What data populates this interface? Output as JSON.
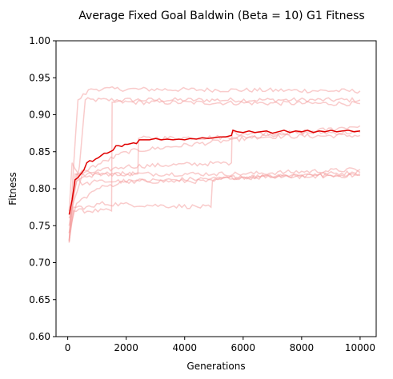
{
  "chart_data": {
    "type": "line",
    "title": "Average Fixed Goal Baldwin (Beta = 10) G1 Fitness",
    "xlabel": "Generations",
    "ylabel": "Fitness",
    "xlim": [
      -400,
      10550
    ],
    "ylim": [
      0.6,
      1.0
    ],
    "xticks": [
      0,
      2000,
      4000,
      6000,
      8000,
      10000
    ],
    "xtick_labels": [
      "0",
      "2000",
      "4000",
      "6000",
      "8000",
      "10000"
    ],
    "yticks": [
      0.6,
      0.65,
      0.7,
      0.75,
      0.8,
      0.85,
      0.9,
      0.95,
      1.0
    ],
    "ytick_labels": [
      "0.60",
      "0.65",
      "0.70",
      "0.75",
      "0.80",
      "0.85",
      "0.90",
      "0.95",
      "1.00"
    ],
    "grid": false,
    "legend": "none",
    "colors": {
      "mean": "#e00000",
      "runs": "#f4a0a0"
    },
    "runs": [
      {
        "values": [
          [
            50,
            0.727
          ],
          [
            150,
            0.78
          ],
          [
            400,
            0.83
          ],
          [
            600,
            0.92
          ],
          [
            10000,
            0.92
          ]
        ]
      },
      {
        "values": [
          [
            50,
            0.73
          ],
          [
            200,
            0.83
          ],
          [
            350,
            0.92
          ],
          [
            800,
            0.935
          ],
          [
            10000,
            0.932
          ]
        ]
      },
      {
        "values": [
          [
            50,
            0.73
          ],
          [
            200,
            0.77
          ],
          [
            1500,
            0.77
          ],
          [
            1520,
            0.917
          ],
          [
            10000,
            0.915
          ]
        ]
      },
      {
        "values": [
          [
            50,
            0.75
          ],
          [
            300,
            0.81
          ],
          [
            1000,
            0.82
          ],
          [
            2400,
            0.82
          ],
          [
            2420,
            0.868
          ],
          [
            10000,
            0.872
          ]
        ]
      },
      {
        "values": [
          [
            50,
            0.76
          ],
          [
            500,
            0.82
          ],
          [
            2000,
            0.83
          ],
          [
            5600,
            0.835
          ],
          [
            5620,
            0.875
          ],
          [
            10000,
            0.876
          ]
        ]
      },
      {
        "values": [
          [
            50,
            0.74
          ],
          [
            300,
            0.82
          ],
          [
            600,
            0.825
          ],
          [
            2000,
            0.85
          ],
          [
            10000,
            0.885
          ]
        ]
      },
      {
        "values": [
          [
            50,
            0.77
          ],
          [
            150,
            0.835
          ],
          [
            500,
            0.805
          ],
          [
            1000,
            0.81
          ],
          [
            5000,
            0.81
          ],
          [
            5500,
            0.815
          ],
          [
            10000,
            0.822
          ]
        ]
      },
      {
        "values": [
          [
            50,
            0.73
          ],
          [
            250,
            0.82
          ],
          [
            500,
            0.82
          ],
          [
            5000,
            0.82
          ],
          [
            6000,
            0.82
          ],
          [
            10000,
            0.826
          ]
        ]
      },
      {
        "values": [
          [
            50,
            0.728
          ],
          [
            200,
            0.775
          ],
          [
            900,
            0.775
          ],
          [
            1000,
            0.78
          ],
          [
            4900,
            0.775
          ],
          [
            4950,
            0.81
          ],
          [
            5500,
            0.815
          ],
          [
            10000,
            0.818
          ]
        ]
      },
      {
        "values": [
          [
            50,
            0.74
          ],
          [
            300,
            0.78
          ],
          [
            1000,
            0.8
          ],
          [
            2000,
            0.81
          ],
          [
            6000,
            0.815
          ],
          [
            10000,
            0.82
          ]
        ]
      }
    ],
    "mean": {
      "values": [
        [
          50,
          0.765
        ],
        [
          150,
          0.785
        ],
        [
          250,
          0.812
        ],
        [
          350,
          0.815
        ],
        [
          450,
          0.82
        ],
        [
          550,
          0.825
        ],
        [
          650,
          0.835
        ],
        [
          750,
          0.838
        ],
        [
          850,
          0.837
        ],
        [
          950,
          0.84
        ],
        [
          1050,
          0.842
        ],
        [
          1150,
          0.845
        ],
        [
          1250,
          0.848
        ],
        [
          1350,
          0.848
        ],
        [
          1450,
          0.85
        ],
        [
          1550,
          0.852
        ],
        [
          1650,
          0.858
        ],
        [
          1750,
          0.858
        ],
        [
          1850,
          0.857
        ],
        [
          1950,
          0.86
        ],
        [
          2050,
          0.86
        ],
        [
          2150,
          0.861
        ],
        [
          2250,
          0.862
        ],
        [
          2350,
          0.861
        ],
        [
          2450,
          0.866
        ],
        [
          2600,
          0.866
        ],
        [
          2800,
          0.866
        ],
        [
          3000,
          0.868
        ],
        [
          3200,
          0.866
        ],
        [
          3400,
          0.867
        ],
        [
          3600,
          0.866
        ],
        [
          3800,
          0.867
        ],
        [
          4000,
          0.866
        ],
        [
          4200,
          0.868
        ],
        [
          4400,
          0.867
        ],
        [
          4600,
          0.869
        ],
        [
          4800,
          0.868
        ],
        [
          5000,
          0.869
        ],
        [
          5200,
          0.87
        ],
        [
          5400,
          0.87
        ],
        [
          5600,
          0.872
        ],
        [
          5650,
          0.879
        ],
        [
          5800,
          0.877
        ],
        [
          6000,
          0.876
        ],
        [
          6200,
          0.878
        ],
        [
          6400,
          0.876
        ],
        [
          6600,
          0.877
        ],
        [
          6800,
          0.878
        ],
        [
          7000,
          0.875
        ],
        [
          7200,
          0.877
        ],
        [
          7400,
          0.879
        ],
        [
          7600,
          0.876
        ],
        [
          7800,
          0.878
        ],
        [
          8000,
          0.877
        ],
        [
          8200,
          0.879
        ],
        [
          8400,
          0.876
        ],
        [
          8600,
          0.878
        ],
        [
          8800,
          0.877
        ],
        [
          9000,
          0.879
        ],
        [
          9200,
          0.877
        ],
        [
          9400,
          0.878
        ],
        [
          9600,
          0.879
        ],
        [
          9800,
          0.877
        ],
        [
          10000,
          0.878
        ]
      ]
    }
  }
}
